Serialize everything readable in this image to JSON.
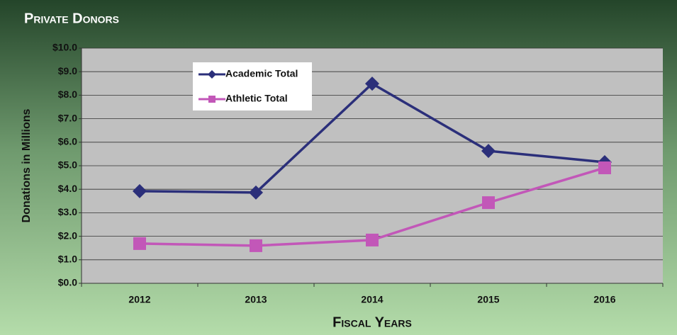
{
  "chart_data": {
    "type": "line",
    "title": "Private Donors",
    "ylabel": "Donations in Millions",
    "xlabel": "Fiscal Years",
    "categories": [
      "2012",
      "2013",
      "2014",
      "2015",
      "2016"
    ],
    "series": [
      {
        "name": "Academic Total",
        "color": "#2b2f7a",
        "marker": "diamond",
        "values": [
          3.92,
          3.86,
          8.49,
          5.63,
          5.15
        ]
      },
      {
        "name": "Athletic Total",
        "color": "#c257b8",
        "marker": "square",
        "values": [
          1.69,
          1.6,
          1.84,
          3.43,
          4.91
        ]
      }
    ],
    "ylim": [
      0,
      10
    ],
    "yticks": [
      {
        "value": 0,
        "label": "$0.0"
      },
      {
        "value": 1,
        "label": "$1.0"
      },
      {
        "value": 2,
        "label": "$2.0"
      },
      {
        "value": 3,
        "label": "$3.0"
      },
      {
        "value": 4,
        "label": "$4.0"
      },
      {
        "value": 5,
        "label": "$5.0"
      },
      {
        "value": 6,
        "label": "$6.0"
      },
      {
        "value": 7,
        "label": "$7.0"
      },
      {
        "value": 8,
        "label": "$8.0"
      },
      {
        "value": 9,
        "label": "$9.0"
      },
      {
        "value": 10,
        "label": "$10.0"
      }
    ],
    "grid": true
  }
}
